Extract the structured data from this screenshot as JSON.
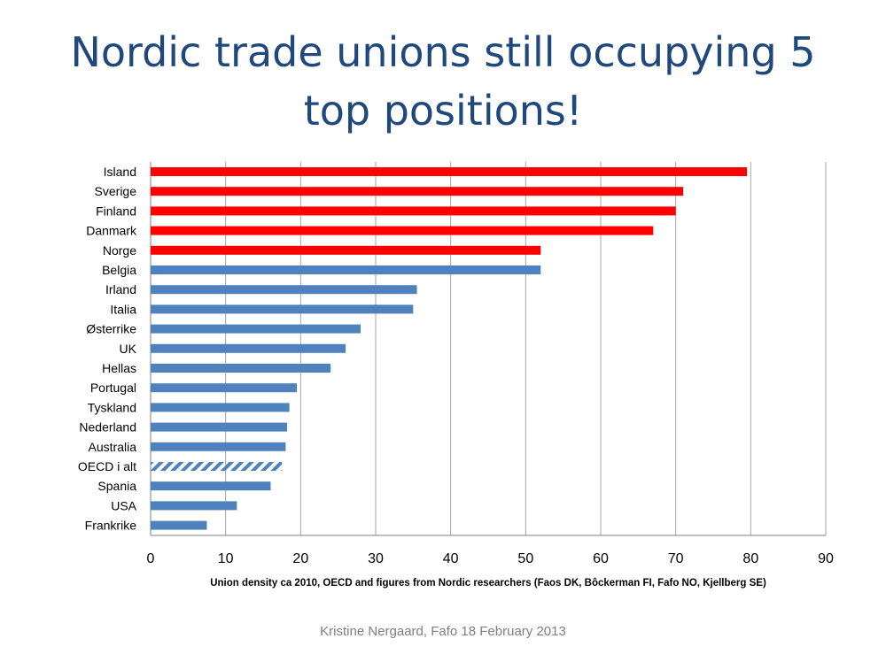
{
  "slide": {
    "title_line1": "Nordic trade unions still occupying 5",
    "title_line2": "top positions!",
    "footer": "Kristine Nergaard, Fafo 18 February 2013"
  },
  "colors": {
    "nordic": "#ff0000",
    "other": "#4f81bd",
    "title": "#1f497d",
    "grid": "#a6a6a6"
  },
  "chart_data": {
    "type": "bar",
    "orientation": "horizontal",
    "xlabel": "Union density ca 2010,  OECD and figures from Nordic researchers (Faos DK, Bôckerman FI, Fafo NO, Kjellberg SE)",
    "xlim": [
      0,
      90
    ],
    "xticks": [
      0,
      10,
      20,
      30,
      40,
      50,
      60,
      70,
      80,
      90
    ],
    "grid": true,
    "categories": [
      "Island",
      "Sverige",
      "Finland",
      "Danmark",
      "Norge",
      "Belgia",
      "Irland",
      "Italia",
      "Østerrike",
      "UK",
      "Hellas",
      "Portugal",
      "Tyskland",
      "Nederland",
      "Australia",
      "OECD i alt",
      "Spania",
      "USA",
      "Frankrike"
    ],
    "values": [
      79.5,
      71,
      70,
      67,
      52,
      52,
      35.5,
      35,
      28,
      26,
      24,
      19.5,
      18.5,
      18.2,
      18,
      17.5,
      16,
      11.5,
      7.5
    ],
    "bar_styles": [
      "nordic",
      "nordic",
      "nordic",
      "nordic",
      "nordic",
      "other",
      "other",
      "other",
      "other",
      "other",
      "other",
      "other",
      "other",
      "other",
      "other",
      "hatched",
      "other",
      "other",
      "other"
    ]
  }
}
